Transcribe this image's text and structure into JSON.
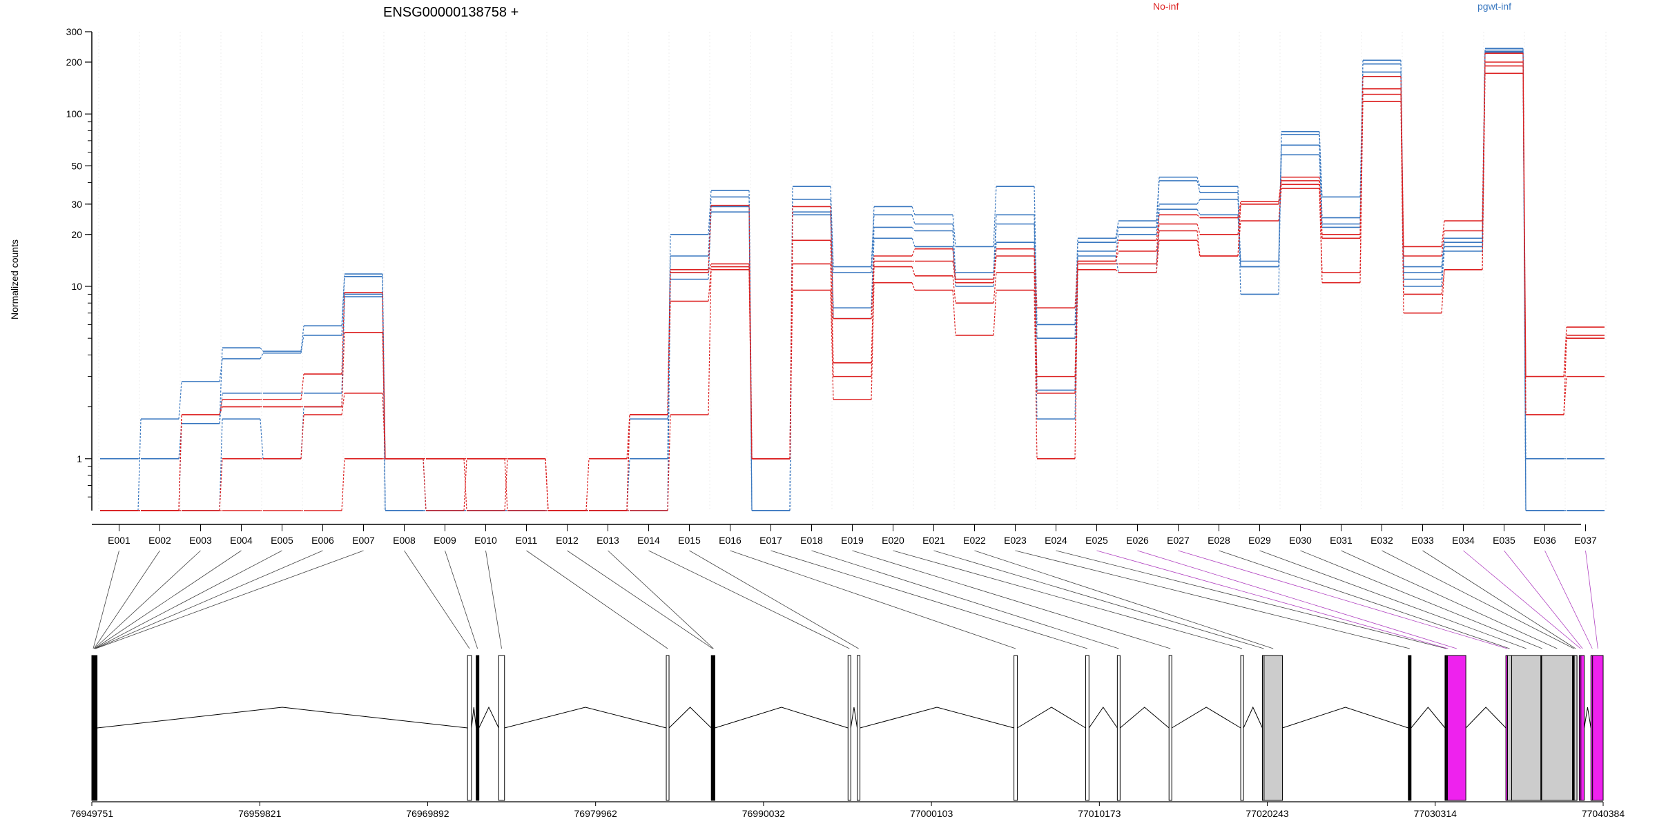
{
  "chart_data": {
    "type": "line",
    "title": "ENSG00000138758 +",
    "ylabel": "Normalized counts",
    "yscale": "log",
    "ylim": [
      0.5,
      300
    ],
    "yticks": [
      1,
      10,
      20,
      30,
      50,
      100,
      200,
      300
    ],
    "legend": [
      {
        "name": "No-inf",
        "color": "#dd2222"
      },
      {
        "name": "pgwt-inf",
        "color": "#3a78c0"
      }
    ],
    "categories": [
      "E001",
      "E002",
      "E003",
      "E004",
      "E005",
      "E006",
      "E007",
      "E008",
      "E009",
      "E010",
      "E011",
      "E012",
      "E013",
      "E014",
      "E015",
      "E016",
      "E017",
      "E018",
      "E019",
      "E020",
      "E021",
      "E022",
      "E023",
      "E024",
      "E025",
      "E026",
      "E027",
      "E028",
      "E029",
      "E030",
      "E031",
      "E032",
      "E033",
      "E034",
      "E035",
      "E036",
      "E037"
    ],
    "series": [
      {
        "group": "pgwt-inf",
        "values": [
          1,
          1,
          1.6,
          4.4,
          4.2,
          5.9,
          11.8,
          1,
          0.5,
          0.5,
          0.5,
          0.5,
          0.5,
          1,
          20,
          36,
          1,
          38,
          13,
          29,
          26,
          17,
          38,
          6,
          19,
          24,
          43,
          38,
          9,
          79,
          33,
          205,
          13,
          19,
          240,
          1,
          1
        ]
      },
      {
        "group": "pgwt-inf",
        "values": [
          0.5,
          1.7,
          2.8,
          3.8,
          4.1,
          5.2,
          11.4,
          0.5,
          0.5,
          0.5,
          0.5,
          0.5,
          0.5,
          1.7,
          15,
          33,
          0.5,
          32,
          12,
          26,
          23,
          12,
          26,
          5,
          18,
          22,
          41,
          35,
          13,
          76,
          25,
          195,
          12,
          18,
          235,
          0.5,
          0.5
        ]
      },
      {
        "group": "pgwt-inf",
        "values": [
          0.5,
          0.5,
          1.6,
          2.4,
          2.4,
          2.4,
          9,
          0.5,
          0.5,
          0.5,
          0.5,
          0.5,
          0.5,
          0.5,
          12,
          29,
          0.5,
          26,
          7.5,
          22,
          21,
          11,
          23,
          2.5,
          16,
          20,
          30,
          32,
          14,
          66,
          23,
          175,
          11,
          17,
          230,
          0.5,
          0.5
        ]
      },
      {
        "group": "pgwt-inf",
        "values": [
          0.5,
          0.5,
          0.5,
          1.7,
          1,
          2,
          8.7,
          0.5,
          0.5,
          0.5,
          0.5,
          0.5,
          0.5,
          0.5,
          11,
          27,
          0.5,
          27,
          6.5,
          19,
          17,
          10,
          18,
          1.7,
          15,
          12,
          28,
          26,
          13,
          58,
          22,
          165,
          10,
          16,
          228,
          0.5,
          0.5
        ]
      },
      {
        "group": "No-inf",
        "values": [
          0.5,
          0.5,
          1.8,
          2.2,
          2.2,
          3.1,
          9.2,
          1,
          0.5,
          1,
          1,
          0.5,
          1,
          1.8,
          12.5,
          29.5,
          1,
          29,
          6.5,
          15,
          16.5,
          11,
          16.5,
          7.5,
          14,
          18.5,
          26,
          25,
          31,
          43,
          20,
          165,
          17,
          24,
          225,
          3,
          5.8
        ]
      },
      {
        "group": "No-inf",
        "values": [
          0.5,
          0.5,
          1.8,
          2,
          2,
          2,
          5.4,
          1,
          1,
          0.5,
          1,
          0.5,
          0.5,
          1.8,
          12,
          13.5,
          1,
          18.5,
          3.6,
          14,
          14,
          10.5,
          15,
          3,
          14,
          16,
          23,
          20,
          30,
          41,
          19,
          140,
          15,
          21,
          200,
          3,
          5.2
        ]
      },
      {
        "group": "No-inf",
        "values": [
          0.5,
          0.5,
          0.5,
          1,
          1,
          1.8,
          2.4,
          1,
          1,
          1,
          1,
          0.5,
          0.5,
          1.8,
          8.2,
          13,
          1,
          13.5,
          3,
          13,
          11.5,
          8,
          12,
          2.4,
          13.5,
          13.5,
          21,
          15,
          30,
          39,
          12,
          130,
          9,
          12.5,
          190,
          1.8,
          5
        ]
      },
      {
        "group": "No-inf",
        "values": [
          0.5,
          0.5,
          0.5,
          0.5,
          0.5,
          0.5,
          1,
          1,
          1,
          1,
          0.5,
          0.5,
          0.5,
          0.5,
          1.8,
          12.5,
          1,
          9.5,
          2.2,
          10.5,
          9.5,
          5.2,
          9.5,
          1,
          12.5,
          12,
          18.5,
          15,
          24,
          37,
          10.5,
          118,
          7,
          12.5,
          172,
          1.8,
          3
        ]
      }
    ],
    "gene_model": {
      "x_axis_label_values": [
        "76949751",
        "76959821",
        "76969892",
        "76979962",
        "76990032",
        "77000103",
        "77010173",
        "77020243",
        "77030314",
        "77040384"
      ],
      "genomic_range": [
        76949751,
        77040384
      ],
      "exons": [
        {
          "id": "E001",
          "start": 76949751,
          "end": 76949800,
          "fill": "black"
        },
        {
          "id": "E002",
          "start": 76949800,
          "end": 76949820,
          "fill": "black"
        },
        {
          "id": "E003",
          "start": 76949820,
          "end": 76949840,
          "fill": "black"
        },
        {
          "id": "E004",
          "start": 76949840,
          "end": 76949860,
          "fill": "black"
        },
        {
          "id": "E005",
          "start": 76949860,
          "end": 76949880,
          "fill": "black"
        },
        {
          "id": "E006",
          "start": 76949880,
          "end": 76949900,
          "fill": "black"
        },
        {
          "id": "E007",
          "start": 76949900,
          "end": 76949920,
          "fill": "black"
        },
        {
          "id": "E008",
          "start": 76972280,
          "end": 76972520,
          "fill": "white"
        },
        {
          "id": "E009",
          "start": 76972800,
          "end": 76972900,
          "fill": "black"
        },
        {
          "id": "E010",
          "start": 76974150,
          "end": 76974500,
          "fill": "white"
        },
        {
          "id": "E011",
          "start": 76984200,
          "end": 76984300,
          "fill": "white"
        },
        {
          "id": "E012",
          "start": 76986900,
          "end": 76986950,
          "fill": "black"
        },
        {
          "id": "E013",
          "start": 76986950,
          "end": 76987000,
          "fill": "black"
        },
        {
          "id": "E014",
          "start": 76995100,
          "end": 76995250,
          "fill": "white"
        },
        {
          "id": "E015",
          "start": 76995650,
          "end": 76995800,
          "fill": "white"
        },
        {
          "id": "E016",
          "start": 77005050,
          "end": 77005250,
          "fill": "white"
        },
        {
          "id": "E017",
          "start": 77009350,
          "end": 77009550,
          "fill": "white"
        },
        {
          "id": "E018",
          "start": 77011250,
          "end": 77011400,
          "fill": "white"
        },
        {
          "id": "E019",
          "start": 77014350,
          "end": 77014500,
          "fill": "white"
        },
        {
          "id": "E020",
          "start": 77018650,
          "end": 77018750,
          "fill": "white"
        },
        {
          "id": "E021",
          "start": 77019950,
          "end": 77020050,
          "fill": "gray"
        },
        {
          "id": "E022",
          "start": 77020050,
          "end": 77021150,
          "fill": "gray"
        },
        {
          "id": "E023",
          "start": 77028700,
          "end": 77028800,
          "fill": "black"
        },
        {
          "id": "E024",
          "start": 77030900,
          "end": 77031000,
          "fill": "black"
        },
        {
          "id": "E025",
          "start": 77031000,
          "end": 77031050,
          "fill": "magenta"
        },
        {
          "id": "E026",
          "start": 77031050,
          "end": 77032150,
          "fill": "magenta"
        },
        {
          "id": "E027",
          "start": 77034550,
          "end": 77034650,
          "fill": "magenta"
        },
        {
          "id": "E028",
          "start": 77034650,
          "end": 77034900,
          "fill": "gray"
        },
        {
          "id": "E029",
          "start": 77034900,
          "end": 77036650,
          "fill": "gray"
        },
        {
          "id": "E030",
          "start": 77036650,
          "end": 77036700,
          "fill": "black"
        },
        {
          "id": "E031",
          "start": 77036700,
          "end": 77038550,
          "fill": "gray"
        },
        {
          "id": "E032",
          "start": 77038550,
          "end": 77038650,
          "fill": "black"
        },
        {
          "id": "E033",
          "start": 77038650,
          "end": 77038700,
          "fill": "gray"
        },
        {
          "id": "E034",
          "start": 77038950,
          "end": 77039050,
          "fill": "magenta"
        },
        {
          "id": "E035",
          "start": 77039050,
          "end": 77039250,
          "fill": "magenta"
        },
        {
          "id": "E036",
          "start": 77039650,
          "end": 77039750,
          "fill": "magenta"
        },
        {
          "id": "E037",
          "start": 77039750,
          "end": 77040384,
          "fill": "magenta"
        }
      ]
    }
  },
  "colors": {
    "no_inf": "#dd2222",
    "pgwt_inf": "#3a78c0",
    "highlight_exon": "#ee22ee",
    "shaded_exon": "#cccccc"
  }
}
